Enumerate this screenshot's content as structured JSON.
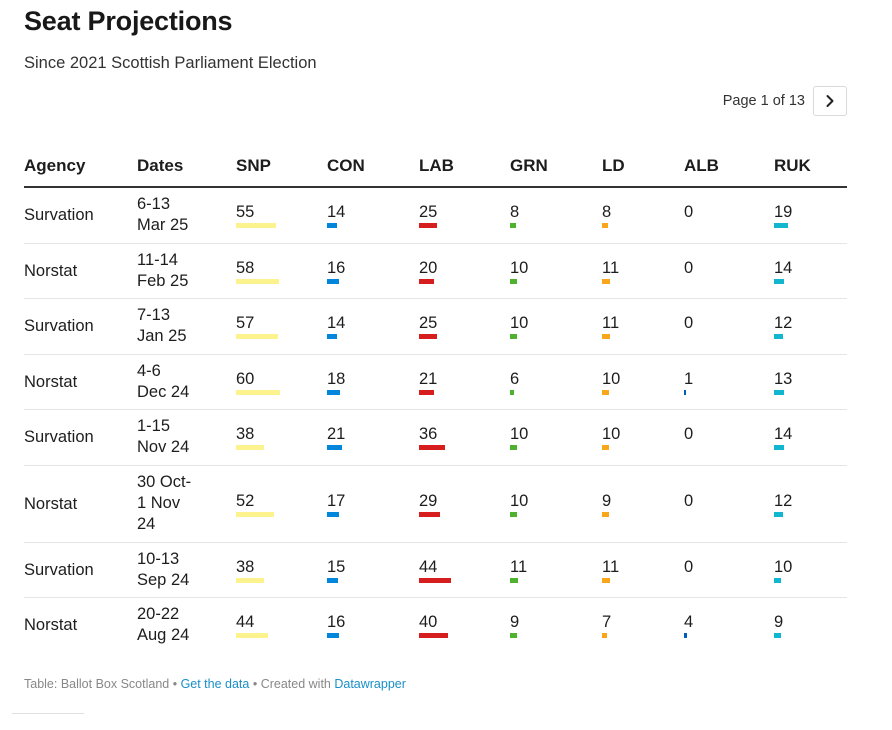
{
  "title": "Seat Projections",
  "subtitle": "Since 2021 Scottish Parliament Election",
  "pagination": {
    "label": "Page 1 of 13",
    "next_icon": "chevron-right-icon"
  },
  "footer": {
    "source": "Table: Ballot Box Scotland",
    "sep1": " • ",
    "data_link": "Get the data",
    "sep2": " • Created with ",
    "tool_link": "Datawrapper"
  },
  "chart_data": {
    "type": "table",
    "columns": [
      "Agency",
      "Dates",
      "SNP",
      "CON",
      "LAB",
      "GRN",
      "LD",
      "ALB",
      "RUK"
    ],
    "party_keys": [
      "SNP",
      "CON",
      "LAB",
      "GRN",
      "LD",
      "ALB",
      "RUK"
    ],
    "party_colors": {
      "SNP": "#fdf38e",
      "CON": "#0087dc",
      "LAB": "#d71e1e",
      "GRN": "#4fb22f",
      "LD": "#faa61a",
      "ALB": "#005eb8",
      "RUK": "#12b6cf"
    },
    "bar_max": 60,
    "rows": [
      {
        "agency": "Survation",
        "dates": [
          "6-13",
          "Mar 25"
        ],
        "values": [
          55,
          14,
          25,
          8,
          8,
          0,
          19
        ]
      },
      {
        "agency": "Norstat",
        "dates": [
          "11-14",
          "Feb 25"
        ],
        "values": [
          58,
          16,
          20,
          10,
          11,
          0,
          14
        ]
      },
      {
        "agency": "Survation",
        "dates": [
          "7-13",
          "Jan 25"
        ],
        "values": [
          57,
          14,
          25,
          10,
          11,
          0,
          12
        ]
      },
      {
        "agency": "Norstat",
        "dates": [
          "4-6",
          "Dec 24"
        ],
        "values": [
          60,
          18,
          21,
          6,
          10,
          1,
          13
        ]
      },
      {
        "agency": "Survation",
        "dates": [
          "1-15",
          "Nov 24"
        ],
        "values": [
          38,
          21,
          36,
          10,
          10,
          0,
          14
        ]
      },
      {
        "agency": "Norstat",
        "dates": [
          "30 Oct-",
          "1 Nov",
          "24"
        ],
        "values": [
          52,
          17,
          29,
          10,
          9,
          0,
          12
        ]
      },
      {
        "agency": "Survation",
        "dates": [
          "10-13",
          "Sep 24"
        ],
        "values": [
          38,
          15,
          44,
          11,
          11,
          0,
          10
        ]
      },
      {
        "agency": "Norstat",
        "dates": [
          "20-22",
          "Aug 24"
        ],
        "values": [
          44,
          16,
          40,
          9,
          7,
          4,
          9
        ]
      }
    ]
  }
}
